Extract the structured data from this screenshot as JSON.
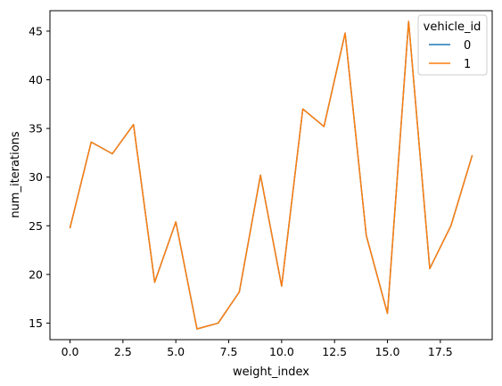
{
  "chart_data": {
    "type": "line",
    "title": "",
    "xlabel": "weight_index",
    "ylabel": "num_iterations",
    "xlim": [
      -0.95,
      19.95
    ],
    "ylim": [
      13.3,
      47.1
    ],
    "xticks": [
      0.0,
      2.5,
      5.0,
      7.5,
      10.0,
      12.5,
      15.0,
      17.5
    ],
    "xtick_labels": [
      "0.0",
      "2.5",
      "5.0",
      "7.5",
      "10.0",
      "12.5",
      "15.0",
      "17.5"
    ],
    "yticks": [
      15,
      20,
      25,
      30,
      35,
      40,
      45
    ],
    "ytick_labels": [
      "15",
      "20",
      "25",
      "30",
      "35",
      "40",
      "45"
    ],
    "x": [
      0,
      1,
      2,
      3,
      4,
      5,
      6,
      7,
      8,
      9,
      10,
      11,
      12,
      13,
      14,
      15,
      16,
      17,
      18,
      19
    ],
    "series": [
      {
        "name": "0",
        "color": "#1f77b4",
        "values": [
          24.8,
          33.6,
          32.4,
          35.4,
          19.2,
          25.4,
          14.4,
          15.0,
          18.2,
          30.2,
          18.8,
          37.0,
          35.2,
          44.8,
          24.0,
          16.0,
          46.0,
          20.6,
          25.0,
          32.2
        ]
      },
      {
        "name": "1",
        "color": "#ff7f0e",
        "values": [
          24.8,
          33.6,
          32.4,
          35.4,
          19.2,
          25.4,
          14.4,
          15.0,
          18.2,
          30.2,
          18.8,
          37.0,
          35.2,
          44.8,
          24.0,
          16.0,
          46.0,
          20.6,
          25.0,
          32.2
        ]
      }
    ],
    "legend": {
      "title": "vehicle_id",
      "location": "top-right"
    },
    "grid": false
  }
}
